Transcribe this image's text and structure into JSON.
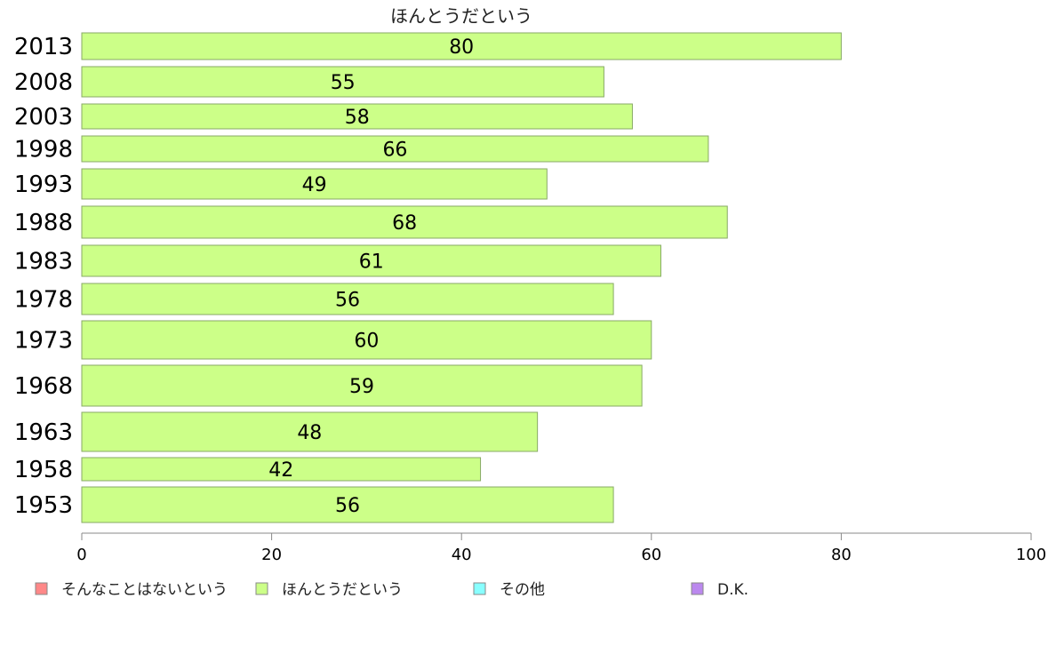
{
  "chart_data": {
    "type": "bar",
    "orientation": "horizontal",
    "title": "ほんとうだという",
    "categories": [
      "2013",
      "2008",
      "2003",
      "1998",
      "1993",
      "1988",
      "1983",
      "1978",
      "1973",
      "1968",
      "1963",
      "1958",
      "1953"
    ],
    "series": [
      {
        "name": "ほんとうだという",
        "color": "#ccff88",
        "values": [
          80,
          55,
          58,
          66,
          49,
          68,
          61,
          56,
          60,
          59,
          48,
          42,
          56
        ]
      }
    ],
    "value_labels": [
      "80",
      "55",
      "58",
      "66",
      "49",
      "68",
      "61",
      "56",
      "60",
      "59",
      "48",
      "42",
      "56"
    ],
    "xlim": [
      0,
      100
    ],
    "xticks": [
      "0",
      "20",
      "40",
      "60",
      "80",
      "100"
    ],
    "grid": false,
    "legend_position": "bottom",
    "legend": [
      {
        "label": "そんなことはないという",
        "color": "#ff8888"
      },
      {
        "label": "ほんとうだという",
        "color": "#ccff88"
      },
      {
        "label": "その他",
        "color": "#88ffff"
      },
      {
        "label": "D.K.",
        "color": "#bb88ee"
      }
    ],
    "bar_stroke_color": "#88aa66",
    "axis_color": "#888888"
  }
}
